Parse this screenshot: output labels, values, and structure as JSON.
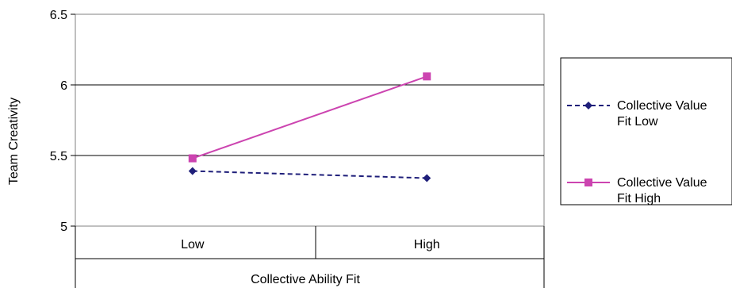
{
  "chart_data": {
    "type": "line",
    "title": "",
    "xlabel": "Collective Ability Fit",
    "ylabel": "Team Creativity",
    "categories": [
      "Low",
      "High"
    ],
    "ylim": [
      5,
      6.5
    ],
    "yticks": [
      "5",
      "5.5",
      "6",
      "6.5"
    ],
    "ytick_values": [
      5,
      5.5,
      6,
      6.5
    ],
    "grid": "horizontal",
    "legend_position": "right",
    "series": [
      {
        "name_line1": "Collective Value",
        "name_line2": "Fit Low",
        "values": [
          5.39,
          5.34
        ],
        "color": "#1f1f7a",
        "dash": "dashed",
        "marker": "diamond"
      },
      {
        "name_line1": "Collective Value",
        "name_line2": "Fit High",
        "values": [
          5.48,
          6.06
        ],
        "color": "#cc44b0",
        "dash": "solid",
        "marker": "square"
      }
    ]
  }
}
